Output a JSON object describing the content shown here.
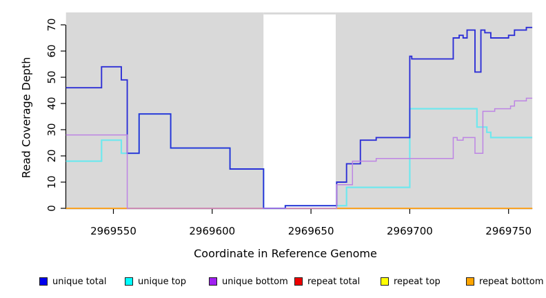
{
  "chart_data": {
    "type": "line",
    "subtype": "step-coverage",
    "title": "",
    "xlabel": "Coordinate in Reference Genome",
    "ylabel": "Read Coverage Depth",
    "xlim": [
      2969526,
      2969762
    ],
    "ylim": [
      0,
      74
    ],
    "x_ticks": [
      2969550,
      2969600,
      2969650,
      2969700,
      2969750
    ],
    "x_tick_labels": [
      "2969550",
      "2969600",
      "2969650",
      "2969700",
      "2969750"
    ],
    "y_ticks": [
      0,
      10,
      20,
      30,
      40,
      50,
      60,
      70
    ],
    "y_tick_labels": [
      "0",
      "10",
      "20",
      "30",
      "40",
      "50",
      "60",
      "70"
    ],
    "grid": false,
    "panel_color": "#d9d9d9",
    "gap_region": {
      "start": 2969626,
      "end": 2969662.5,
      "color": "#ffffff"
    },
    "shaded_regions": [
      {
        "start": 2969526,
        "end": 2969626,
        "color": "#d9d9d9"
      },
      {
        "start": 2969662.5,
        "end": 2969762,
        "color": "#d9d9d9"
      }
    ],
    "x_end": 2969762,
    "series": [
      {
        "name": "repeat total",
        "color": "#ee0000",
        "width": 1.5,
        "points": [
          [
            2969526,
            0
          ]
        ]
      },
      {
        "name": "repeat top",
        "color": "#ffff00",
        "width": 1.5,
        "points": [
          [
            2969526,
            0
          ]
        ]
      },
      {
        "name": "repeat bottom",
        "color": "#ffa424",
        "width": 1.8,
        "points": [
          [
            2969526,
            0
          ]
        ]
      },
      {
        "name": "unique top",
        "color": "#6fe8ee",
        "width": 2.2,
        "points": [
          [
            2969526,
            18
          ],
          [
            2969544,
            26
          ],
          [
            2969554,
            21
          ],
          [
            2969563,
            36
          ],
          [
            2969579,
            23
          ],
          [
            2969609,
            15
          ],
          [
            2969626,
            0
          ],
          [
            2969637,
            1
          ],
          [
            2969668,
            8
          ],
          [
            2969700,
            38
          ],
          [
            2969734,
            31
          ],
          [
            2969739,
            29
          ],
          [
            2969741,
            27
          ]
        ]
      },
      {
        "name": "unique total",
        "color": "#2d2fd6",
        "width": 1.9,
        "points": [
          [
            2969526,
            46
          ],
          [
            2969544,
            54
          ],
          [
            2969554,
            49
          ],
          [
            2969557,
            21
          ],
          [
            2969563,
            36
          ],
          [
            2969579,
            23
          ],
          [
            2969609,
            15
          ],
          [
            2969626,
            0
          ],
          [
            2969637,
            1
          ],
          [
            2969663,
            10
          ],
          [
            2969668,
            17
          ],
          [
            2969675,
            26
          ],
          [
            2969683,
            27
          ],
          [
            2969700,
            58
          ],
          [
            2969701,
            57
          ],
          [
            2969722,
            65
          ],
          [
            2969725,
            66
          ],
          [
            2969727,
            65
          ],
          [
            2969729,
            68
          ],
          [
            2969733,
            52
          ],
          [
            2969736,
            68
          ],
          [
            2969738,
            67
          ],
          [
            2969741,
            65
          ],
          [
            2969750,
            66
          ],
          [
            2969753,
            68
          ],
          [
            2969759,
            69
          ]
        ]
      },
      {
        "name": "unique bottom",
        "color": "#bd84e4",
        "width": 1.5,
        "points": [
          [
            2969526,
            28
          ],
          [
            2969557,
            0
          ],
          [
            2969663,
            9
          ],
          [
            2969671,
            18
          ],
          [
            2969683,
            19
          ],
          [
            2969722,
            27
          ],
          [
            2969724,
            26
          ],
          [
            2969727,
            27
          ],
          [
            2969733,
            21
          ],
          [
            2969737,
            37
          ],
          [
            2969743,
            38
          ],
          [
            2969751,
            39
          ],
          [
            2969753,
            41
          ],
          [
            2969759,
            42
          ]
        ]
      }
    ],
    "legend_position": "bottom"
  },
  "legend": {
    "items": [
      {
        "label": "unique total",
        "color": "#0000ee"
      },
      {
        "label": "unique top",
        "color": "#00ffff"
      },
      {
        "label": "unique bottom",
        "color": "#a020f0"
      },
      {
        "label": "repeat total",
        "color": "#ee0000"
      },
      {
        "label": "repeat top",
        "color": "#ffff00"
      },
      {
        "label": "repeat bottom",
        "color": "#ffa500"
      }
    ]
  }
}
